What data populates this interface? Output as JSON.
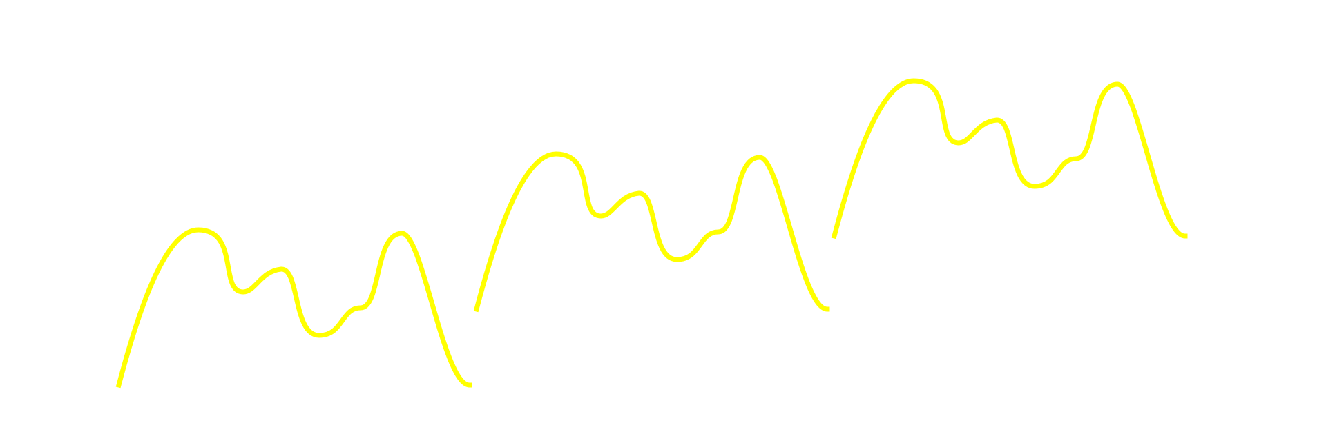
{
  "background_color": "#ffffff",
  "stroke_color": "#ffff00",
  "shapes": [
    {
      "name": "wave-left",
      "kind": "squiggle-line"
    },
    {
      "name": "wave-middle",
      "kind": "squiggle-line"
    },
    {
      "name": "wave-right",
      "kind": "squiggle-line"
    }
  ]
}
